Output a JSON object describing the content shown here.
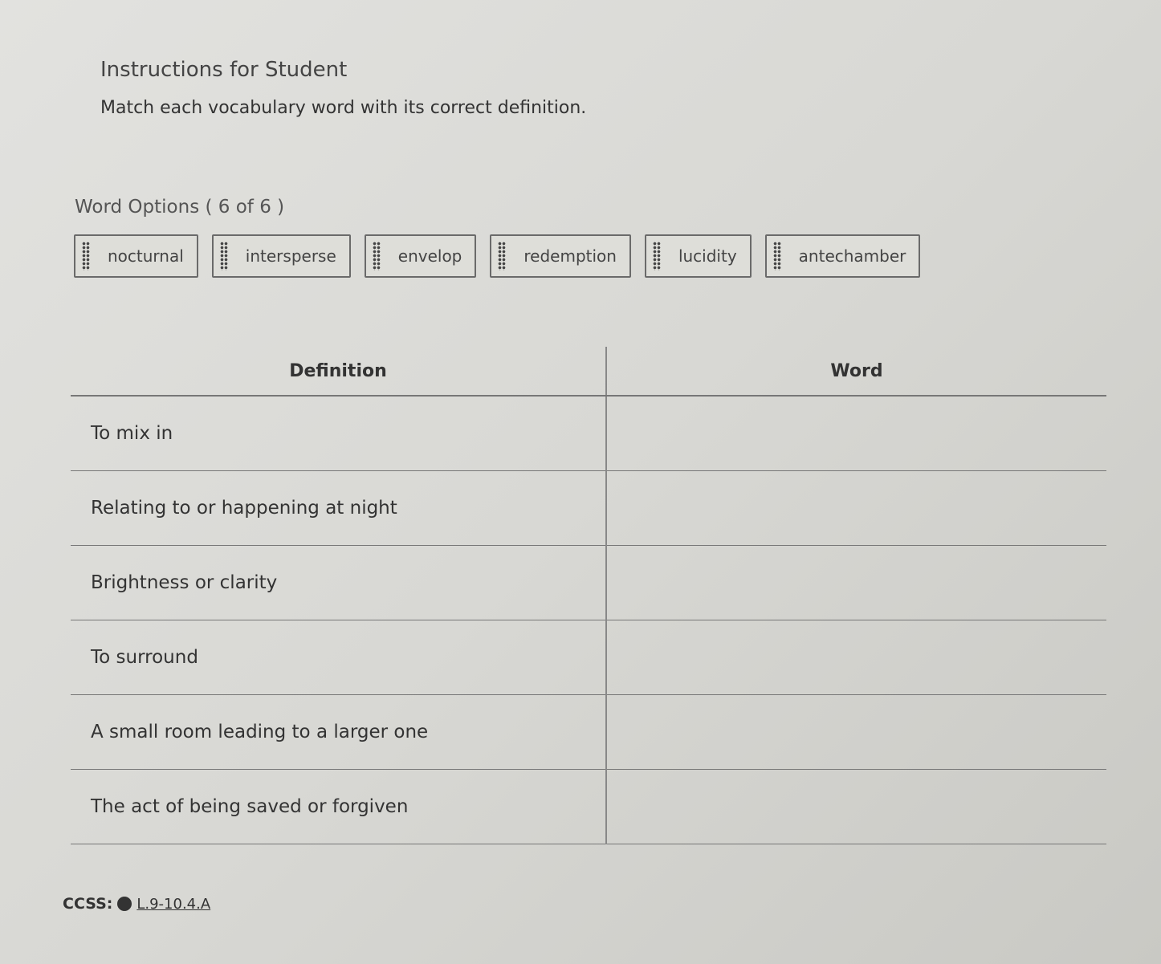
{
  "header": {
    "title": "Instructions for Student",
    "instructions": "Match each vocabulary word with its correct definition."
  },
  "options": {
    "label": "Word Options ( 6 of 6 )",
    "words": [
      "nocturnal",
      "intersperse",
      "envelop",
      "redemption",
      "lucidity",
      "antechamber"
    ]
  },
  "table": {
    "headers": [
      "Definition",
      "Word"
    ],
    "rows": [
      {
        "definition": "To mix in",
        "word": ""
      },
      {
        "definition": "Relating to or happening at night",
        "word": ""
      },
      {
        "definition": "Brightness or clarity",
        "word": ""
      },
      {
        "definition": "To surround",
        "word": ""
      },
      {
        "definition": "A small room leading to a larger one",
        "word": ""
      },
      {
        "definition": "The act of being saved or forgiven",
        "word": ""
      }
    ]
  },
  "footer": {
    "label": "CCSS:",
    "icon": "standard-badge-icon",
    "standard": "L.9-10.4.A"
  }
}
